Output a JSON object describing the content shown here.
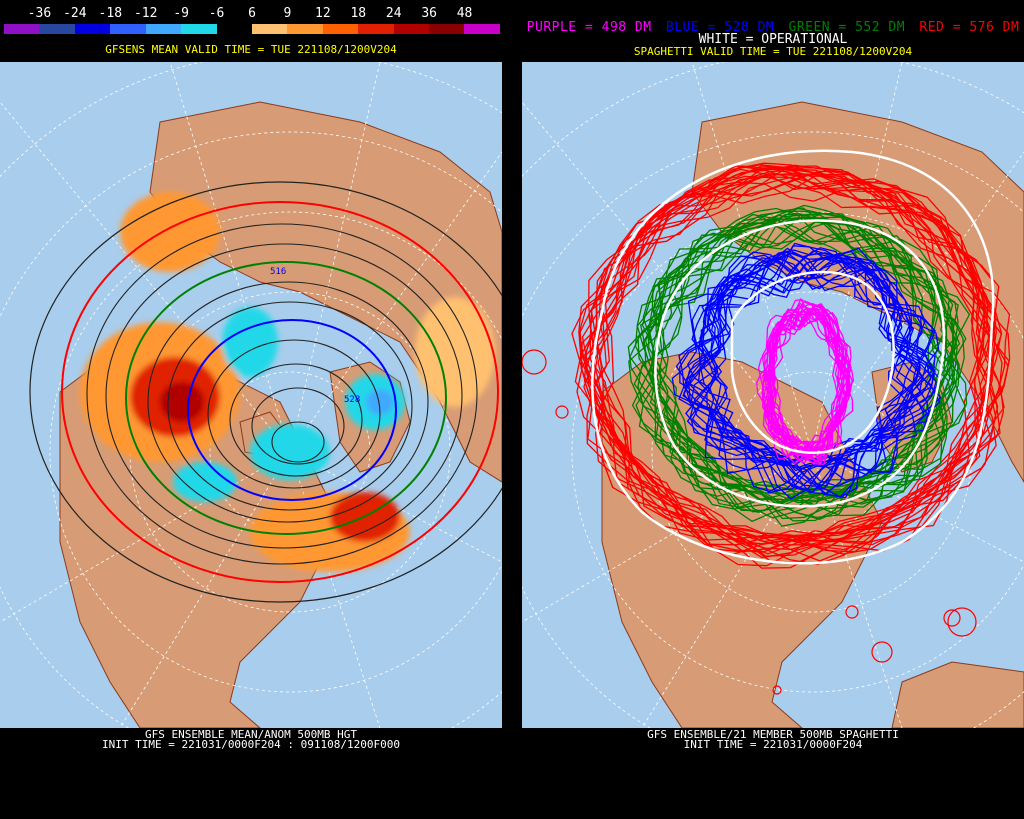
{
  "colors": {
    "ocean": "#a9cdec",
    "land": "#d79c76",
    "border": "#8c3a1c",
    "grid": "#ffffff",
    "purple": "#ff00ff",
    "blue": "#0000ff",
    "green": "#008000",
    "red": "#ff0000",
    "white": "#ffffff",
    "yellow": "#ffff00"
  },
  "left": {
    "colorbar": {
      "labels": [
        "-36",
        "-24",
        "-18",
        "-12",
        "-9",
        "-6",
        "6",
        "9",
        "12",
        "18",
        "24",
        "36",
        "48"
      ],
      "swatch_colors": [
        "#9010c8",
        "#2848a0",
        "#0000e0",
        "#3060ff",
        "#40a8ff",
        "#20d8e8",
        "#000000",
        "#ffc070",
        "#ff9830",
        "#ff6000",
        "#e02000",
        "#b00000",
        "#880000",
        "#c800c8"
      ]
    },
    "top_title": "GFSENS MEAN VALID TIME = TUE 221108/1200V204",
    "bottom_line1": "GFS ENSEMBLE MEAN/ANOM 500MB HGT",
    "bottom_line2": "INIT TIME = 221031/0000F204 : 091108/1200F000",
    "contour_labels": [
      "516",
      "528"
    ]
  },
  "right": {
    "legend": {
      "purple": "PURPLE = 498 DM",
      "blue": "BLUE = 528 DM",
      "green": "GREEN = 552 DM",
      "red": "RED = 576 DM"
    },
    "white_line": "WHITE = OPERATIONAL",
    "top_title": "SPAGHETTI VALID TIME = TUE 221108/1200V204",
    "bottom_line1": "GFS ENSEMBLE/21 MEMBER 500MB SPAGHETTI",
    "bottom_line2": "INIT TIME = 221031/0000F204"
  }
}
